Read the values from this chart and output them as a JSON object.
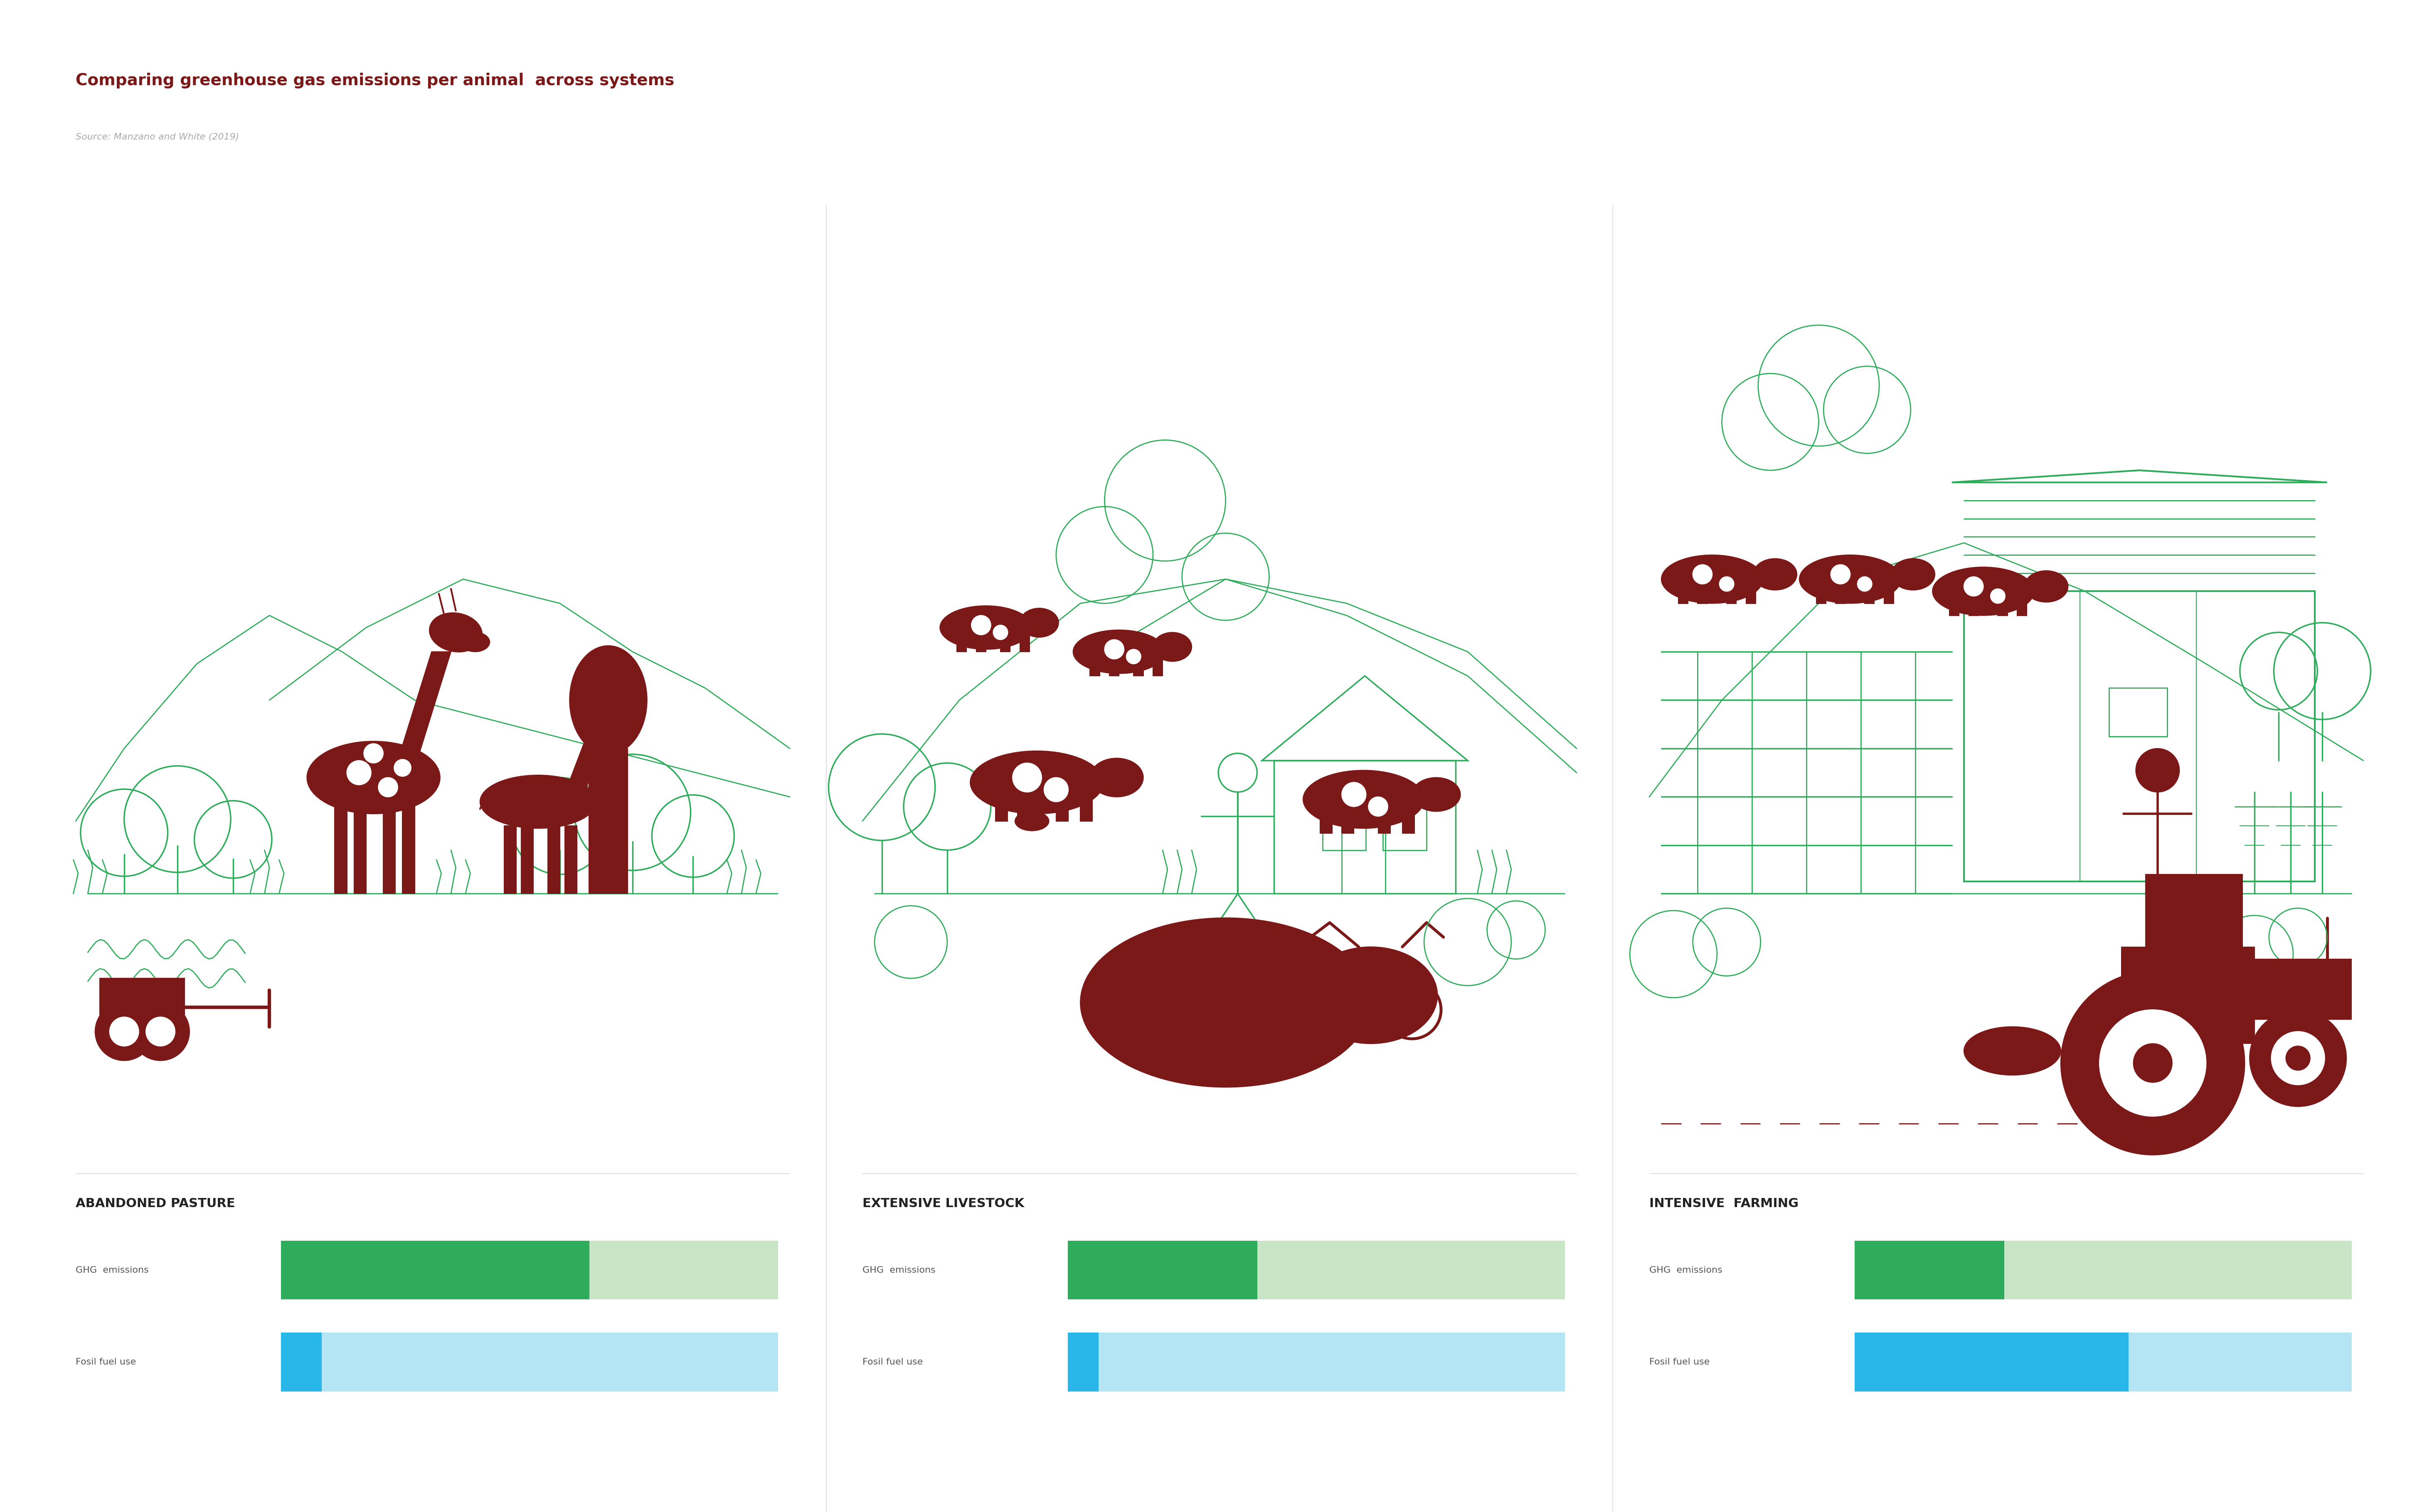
{
  "title": "Comparing greenhouse gas emissions per animal  across systems",
  "source": "Source: Manzano and White (2019)",
  "title_color": "#7B1818",
  "source_color": "#aaaaaa",
  "title_fontsize": 28,
  "source_fontsize": 16,
  "systems": [
    "ABANDONED PASTURE",
    "EXTENSIVE LIVESTOCK",
    "INTENSIVE  FARMING"
  ],
  "system_label_color": "#222222",
  "system_label_fontsize": 22,
  "bar_labels": [
    "GHG  emissions",
    "Fosil fuel use"
  ],
  "bar_label_color": "#555555",
  "bar_label_fontsize": 16,
  "ghg_filled": [
    0.62,
    0.38,
    0.3
  ],
  "fuel_filled": [
    0.08,
    0.06,
    0.55
  ],
  "ghg_color_filled": "#2eac5b",
  "ghg_color_bg": "#c8e6c5",
  "fuel_color_filled": "#29b6e8",
  "fuel_color_bg": "#b3e5f5",
  "background_color": "#ffffff",
  "green": "#2eac5b",
  "brown": "#7B1818"
}
